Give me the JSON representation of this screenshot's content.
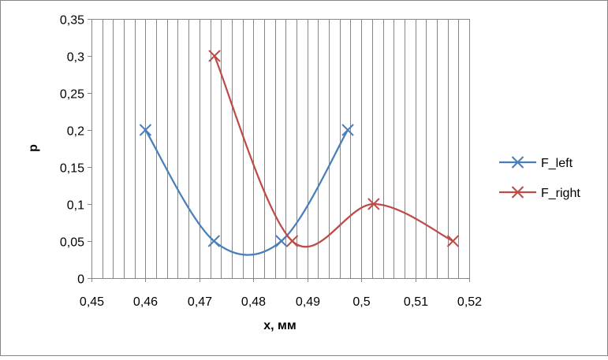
{
  "chart_data": {
    "type": "scatter",
    "title": "",
    "xlabel": "x, мм",
    "ylabel": "p",
    "xlim": [
      0.45,
      0.52
    ],
    "ylim": [
      0,
      0.35
    ],
    "x_ticks": [
      "0,45",
      "0,46",
      "0,47",
      "0,48",
      "0,49",
      "0,5",
      "0,51",
      "0,52"
    ],
    "y_ticks": [
      "0",
      "0,05",
      "0,1",
      "0,15",
      "0,2",
      "0,25",
      "0,3",
      "0,35"
    ],
    "grid": "vertical",
    "smooth_lines": true,
    "legend_position": "right",
    "series": [
      {
        "name": "F_left",
        "color": "#4A7EBB",
        "marker": "x",
        "x": [
          0.46,
          0.4727,
          0.4852,
          0.4975
        ],
        "y": [
          0.2,
          0.05,
          0.05,
          0.2
        ]
      },
      {
        "name": "F_right",
        "color": "#BE4B48",
        "marker": "x",
        "x": [
          0.4728,
          0.4872,
          0.5023,
          0.517
        ],
        "y": [
          0.3,
          0.05,
          0.1,
          0.05
        ]
      }
    ]
  }
}
